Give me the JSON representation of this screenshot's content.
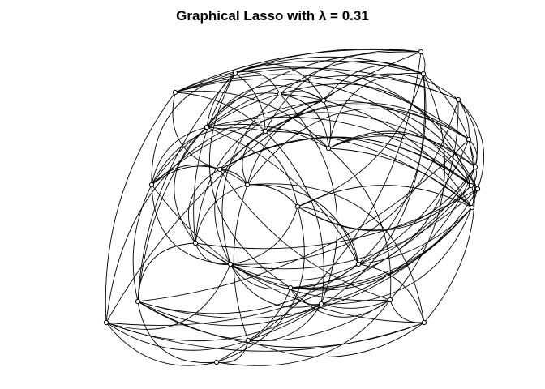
{
  "title": "Graphical Lasso with λ =  0.31",
  "graph": {
    "edge_color": "#000000",
    "node_color": "#ffffff",
    "node_border_color": "#000000",
    "nodes": [
      {
        "id": "n1"
      },
      {
        "id": "n2"
      },
      {
        "id": "n3"
      },
      {
        "id": "n4"
      },
      {
        "id": "n5"
      },
      {
        "id": "n6"
      },
      {
        "id": "n7"
      },
      {
        "id": "n8"
      },
      {
        "id": "n9"
      },
      {
        "id": "n10"
      },
      {
        "id": "n11"
      },
      {
        "id": "n12"
      },
      {
        "id": "n13"
      },
      {
        "id": "n14"
      },
      {
        "id": "n15"
      },
      {
        "id": "n16"
      },
      {
        "id": "n17"
      },
      {
        "id": "n18"
      },
      {
        "id": "n19"
      },
      {
        "id": "n20"
      },
      {
        "id": "n21"
      },
      {
        "id": "n22"
      },
      {
        "id": "n23"
      },
      {
        "id": "n24"
      },
      {
        "id": "n25"
      },
      {
        "id": "n26"
      },
      {
        "id": "n27"
      },
      {
        "id": "n28"
      },
      {
        "id": "n29"
      },
      {
        "id": "n30"
      }
    ],
    "edges": [
      [
        "n1",
        "n2"
      ],
      [
        "n1",
        "n3"
      ],
      [
        "n1",
        "n4"
      ],
      [
        "n1",
        "n9"
      ],
      [
        "n1",
        "n24"
      ],
      [
        "n1",
        "n27"
      ],
      [
        "n1",
        "n30"
      ],
      [
        "n2",
        "n3"
      ],
      [
        "n2",
        "n5"
      ],
      [
        "n2",
        "n6"
      ],
      [
        "n2",
        "n8"
      ],
      [
        "n2",
        "n9"
      ],
      [
        "n2",
        "n12"
      ],
      [
        "n2",
        "n14"
      ],
      [
        "n2",
        "n23"
      ],
      [
        "n2",
        "n24"
      ],
      [
        "n3",
        "n4"
      ],
      [
        "n3",
        "n5"
      ],
      [
        "n3",
        "n6"
      ],
      [
        "n3",
        "n10"
      ],
      [
        "n3",
        "n12"
      ],
      [
        "n3",
        "n17"
      ],
      [
        "n3",
        "n26"
      ],
      [
        "n3",
        "n29"
      ],
      [
        "n4",
        "n7"
      ],
      [
        "n4",
        "n9"
      ],
      [
        "n4",
        "n10"
      ],
      [
        "n4",
        "n11"
      ],
      [
        "n4",
        "n13"
      ],
      [
        "n4",
        "n15"
      ],
      [
        "n4",
        "n27"
      ],
      [
        "n5",
        "n6"
      ],
      [
        "n5",
        "n8"
      ],
      [
        "n5",
        "n10"
      ],
      [
        "n5",
        "n13"
      ],
      [
        "n5",
        "n14"
      ],
      [
        "n5",
        "n19"
      ],
      [
        "n5",
        "n21"
      ],
      [
        "n6",
        "n7"
      ],
      [
        "n6",
        "n8"
      ],
      [
        "n6",
        "n10"
      ],
      [
        "n6",
        "n16"
      ],
      [
        "n6",
        "n18"
      ],
      [
        "n6",
        "n20"
      ],
      [
        "n7",
        "n8"
      ],
      [
        "n7",
        "n11"
      ],
      [
        "n7",
        "n12"
      ],
      [
        "n7",
        "n18"
      ],
      [
        "n7",
        "n21"
      ],
      [
        "n7",
        "n23"
      ],
      [
        "n8",
        "n10"
      ],
      [
        "n8",
        "n13"
      ],
      [
        "n8",
        "n14"
      ],
      [
        "n8",
        "n17"
      ],
      [
        "n8",
        "n20"
      ],
      [
        "n8",
        "n22"
      ],
      [
        "n9",
        "n10"
      ],
      [
        "n9",
        "n11"
      ],
      [
        "n9",
        "n14"
      ],
      [
        "n9",
        "n16"
      ],
      [
        "n9",
        "n19"
      ],
      [
        "n9",
        "n25"
      ],
      [
        "n10",
        "n12"
      ],
      [
        "n10",
        "n13"
      ],
      [
        "n10",
        "n18"
      ],
      [
        "n10",
        "n19"
      ],
      [
        "n10",
        "n26"
      ],
      [
        "n11",
        "n12"
      ],
      [
        "n11",
        "n15"
      ],
      [
        "n11",
        "n16"
      ],
      [
        "n11",
        "n22"
      ],
      [
        "n11",
        "n28"
      ],
      [
        "n12",
        "n13"
      ],
      [
        "n12",
        "n14"
      ],
      [
        "n12",
        "n17"
      ],
      [
        "n12",
        "n22"
      ],
      [
        "n12",
        "n25"
      ],
      [
        "n13",
        "n15"
      ],
      [
        "n13",
        "n17"
      ],
      [
        "n13",
        "n18"
      ],
      [
        "n13",
        "n19"
      ],
      [
        "n13",
        "n27"
      ],
      [
        "n14",
        "n15"
      ],
      [
        "n14",
        "n16"
      ],
      [
        "n14",
        "n21"
      ],
      [
        "n14",
        "n24"
      ],
      [
        "n15",
        "n16"
      ],
      [
        "n15",
        "n18"
      ],
      [
        "n15",
        "n19"
      ],
      [
        "n15",
        "n20"
      ],
      [
        "n15",
        "n26"
      ],
      [
        "n16",
        "n17"
      ],
      [
        "n16",
        "n20"
      ],
      [
        "n16",
        "n22"
      ],
      [
        "n16",
        "n28"
      ],
      [
        "n16",
        "n29"
      ],
      [
        "n17",
        "n19"
      ],
      [
        "n17",
        "n21"
      ],
      [
        "n17",
        "n22"
      ],
      [
        "n17",
        "n30"
      ],
      [
        "n18",
        "n20"
      ],
      [
        "n18",
        "n21"
      ],
      [
        "n18",
        "n23"
      ],
      [
        "n18",
        "n25"
      ],
      [
        "n19",
        "n20"
      ],
      [
        "n19",
        "n22"
      ],
      [
        "n19",
        "n23"
      ],
      [
        "n19",
        "n24"
      ],
      [
        "n20",
        "n21"
      ],
      [
        "n20",
        "n24"
      ],
      [
        "n20",
        "n26"
      ],
      [
        "n21",
        "n22"
      ],
      [
        "n21",
        "n23"
      ],
      [
        "n21",
        "n25"
      ],
      [
        "n21",
        "n27"
      ],
      [
        "n22",
        "n23"
      ],
      [
        "n22",
        "n24"
      ],
      [
        "n22",
        "n28"
      ],
      [
        "n23",
        "n25"
      ],
      [
        "n23",
        "n26"
      ],
      [
        "n23",
        "n29"
      ],
      [
        "n24",
        "n25"
      ],
      [
        "n24",
        "n26"
      ],
      [
        "n24",
        "n28"
      ],
      [
        "n24",
        "n30"
      ],
      [
        "n25",
        "n26"
      ],
      [
        "n25",
        "n27"
      ],
      [
        "n25",
        "n29"
      ],
      [
        "n26",
        "n28"
      ],
      [
        "n26",
        "n30"
      ],
      [
        "n27",
        "n28"
      ],
      [
        "n27",
        "n29"
      ],
      [
        "n27",
        "n30"
      ],
      [
        "n28",
        "n29"
      ],
      [
        "n29",
        "n30"
      ],
      [
        "n2",
        "n20"
      ],
      [
        "n3",
        "n22"
      ],
      [
        "n5",
        "n25"
      ],
      [
        "n6",
        "n27"
      ],
      [
        "n9",
        "n21"
      ],
      [
        "n11",
        "n24"
      ],
      [
        "n14",
        "n28"
      ]
    ]
  }
}
